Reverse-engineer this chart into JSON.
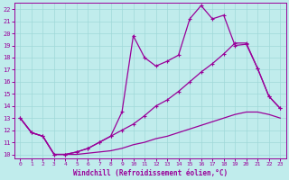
{
  "xlabel": "Windchill (Refroidissement éolien,°C)",
  "bg_color": "#c0ecec",
  "grid_color": "#a0d8d8",
  "line_color": "#990099",
  "x_ticks": [
    0,
    1,
    2,
    3,
    4,
    5,
    6,
    7,
    8,
    9,
    10,
    11,
    12,
    13,
    14,
    15,
    16,
    17,
    18,
    19,
    20,
    21,
    22,
    23
  ],
  "y_ticks": [
    10,
    11,
    12,
    13,
    14,
    15,
    16,
    17,
    18,
    19,
    20,
    21,
    22
  ],
  "xlim_min": -0.5,
  "xlim_max": 23.5,
  "ylim_min": 9.7,
  "ylim_max": 22.5,
  "line_top_x": [
    0,
    1,
    2,
    3,
    4,
    5,
    6,
    7,
    8,
    9,
    10,
    11,
    12,
    13,
    14,
    15,
    16,
    17,
    18,
    19,
    20,
    21,
    22,
    23
  ],
  "line_top_y": [
    13.0,
    11.8,
    11.5,
    10.0,
    10.0,
    10.2,
    10.5,
    11.0,
    11.5,
    13.5,
    19.8,
    18.0,
    17.3,
    17.7,
    18.2,
    21.2,
    22.3,
    21.2,
    21.5,
    19.0,
    19.1,
    17.1,
    14.8,
    13.8
  ],
  "line_mid_x": [
    0,
    1,
    2,
    3,
    4,
    5,
    6,
    7,
    8,
    9,
    10,
    11,
    12,
    13,
    14,
    15,
    16,
    17,
    18,
    19,
    20,
    21,
    22,
    23
  ],
  "line_mid_y": [
    13.0,
    11.8,
    11.5,
    10.0,
    10.0,
    10.2,
    10.5,
    11.0,
    11.5,
    12.0,
    12.5,
    13.2,
    14.0,
    14.5,
    15.2,
    16.0,
    16.8,
    17.5,
    18.3,
    19.2,
    19.2,
    17.1,
    14.8,
    13.8
  ],
  "line_bot_x": [
    0,
    1,
    2,
    3,
    4,
    5,
    6,
    7,
    8,
    9,
    10,
    11,
    12,
    13,
    14,
    15,
    16,
    17,
    18,
    19,
    20,
    21,
    22,
    23
  ],
  "line_bot_y": [
    13.0,
    11.8,
    11.5,
    10.0,
    10.0,
    10.0,
    10.1,
    10.2,
    10.3,
    10.5,
    10.8,
    11.0,
    11.3,
    11.5,
    11.8,
    12.1,
    12.4,
    12.7,
    13.0,
    13.3,
    13.5,
    13.5,
    13.3,
    13.0
  ]
}
